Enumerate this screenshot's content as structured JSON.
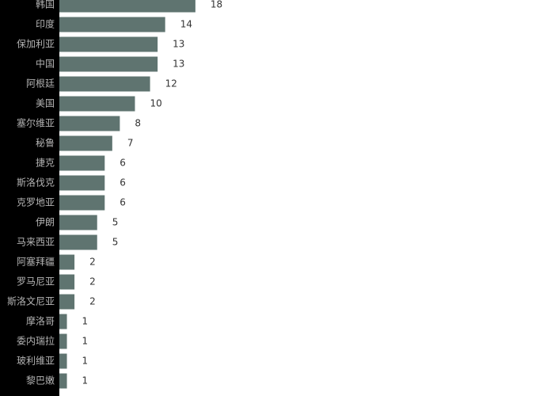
{
  "chart_data": {
    "type": "bar",
    "orientation": "horizontal",
    "title": "",
    "xlabel": "",
    "ylabel": "",
    "categories": [
      "韩国",
      "印度",
      "保加利亚",
      "中国",
      "阿根廷",
      "美国",
      "塞尔维亚",
      "秘鲁",
      "捷克",
      "斯洛伐克",
      "克罗地亚",
      "伊朗",
      "马来西亚",
      "阿塞拜疆",
      "罗马尼亚",
      "斯洛文尼亚",
      "摩洛哥",
      "委内瑞拉",
      "玻利维亚",
      "黎巴嫩"
    ],
    "values": [
      18,
      14,
      13,
      13,
      12,
      10,
      8,
      7,
      6,
      6,
      6,
      5,
      5,
      2,
      2,
      2,
      1,
      1,
      1,
      1
    ],
    "xlim": [
      0,
      18
    ],
    "grid": false,
    "legend": "none",
    "colors": {
      "bar": "#5f7470",
      "label_panel": "#000000",
      "category_text": "#b3b3b3",
      "value_text": "#333333",
      "background": "#ffffff"
    }
  }
}
